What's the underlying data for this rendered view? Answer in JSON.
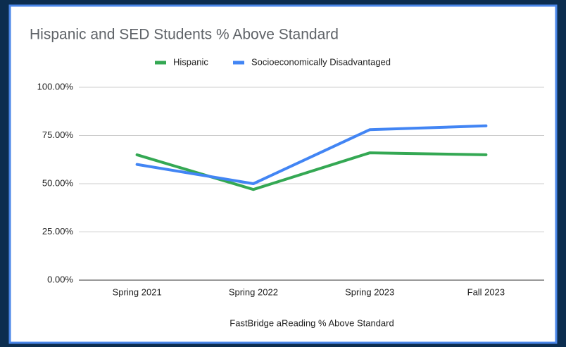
{
  "chart_data": {
    "type": "line",
    "title": "Hispanic and SED Students % Above Standard",
    "x_label": "FastBridge aReading % Above Standard",
    "categories": [
      "Spring 2021",
      "Spring 2022",
      "Spring 2023",
      "Fall 2023"
    ],
    "series": [
      {
        "name": "Hispanic",
        "color": "#34a853",
        "values": [
          65,
          47,
          66,
          65
        ]
      },
      {
        "name": "Socioeconomically Disadvantaged",
        "color": "#4285f4",
        "values": [
          60,
          50,
          78,
          80
        ]
      }
    ],
    "ylim": [
      0,
      100
    ],
    "yticks": [
      {
        "value": 0,
        "label": "0.00%"
      },
      {
        "value": 25,
        "label": "25.00%"
      },
      {
        "value": 50,
        "label": "50.00%"
      },
      {
        "value": 75,
        "label": "75.00%"
      },
      {
        "value": 100,
        "label": "100.00%"
      }
    ],
    "grid": true,
    "legend": "top"
  }
}
